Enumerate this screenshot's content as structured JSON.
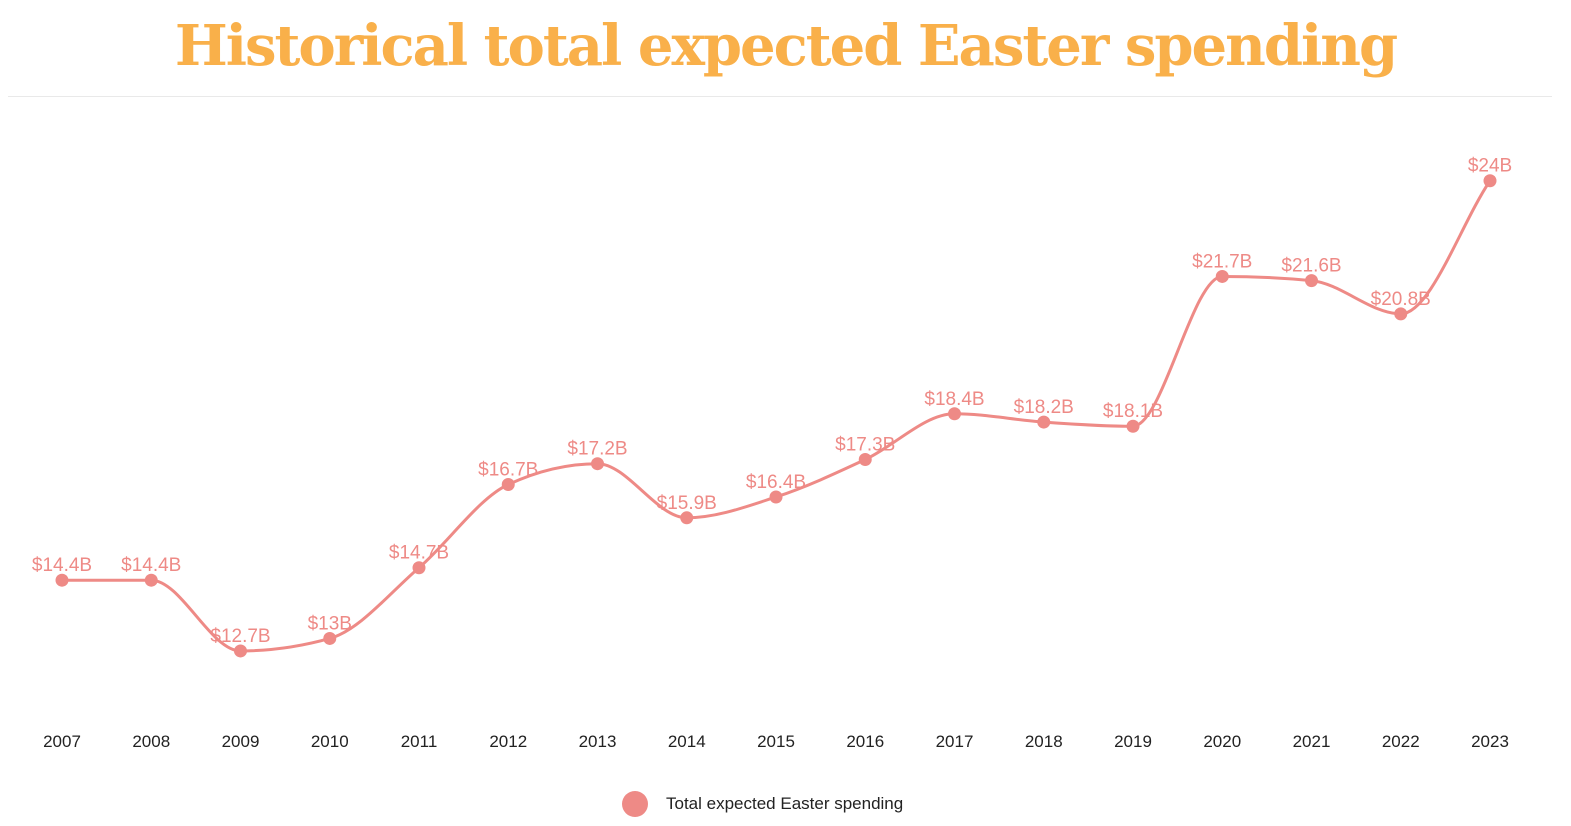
{
  "title": "Historical total expected Easter spending",
  "colors": {
    "title": "#f9b04a",
    "series": "#ee8a86",
    "value_label": "#ee8a86",
    "axis_text": "#222222"
  },
  "legend": {
    "label": "Total expected Easter spending"
  },
  "chart_data": {
    "type": "line",
    "title": "Historical total expected Easter spending",
    "xlabel": "",
    "ylabel": "",
    "grid": false,
    "legend_position": "bottom-center",
    "x": [
      "2007",
      "2008",
      "2009",
      "2010",
      "2011",
      "2012",
      "2013",
      "2014",
      "2015",
      "2016",
      "2017",
      "2018",
      "2019",
      "2020",
      "2021",
      "2022",
      "2023"
    ],
    "series": [
      {
        "name": "Total expected Easter spending",
        "values": [
          14.4,
          14.4,
          12.7,
          13,
          14.7,
          16.7,
          17.2,
          15.9,
          16.4,
          17.3,
          18.4,
          18.2,
          18.1,
          21.7,
          21.6,
          20.8,
          24
        ],
        "labels": [
          "$14.4B",
          "$14.4B",
          "$12.7B",
          "$13B",
          "$14.7B",
          "$16.7B",
          "$17.2B",
          "$15.9B",
          "$16.4B",
          "$17.3B",
          "$18.4B",
          "$18.2B",
          "$18.1B",
          "$21.7B",
          "$21.6B",
          "$20.8B",
          "$24B"
        ]
      }
    ],
    "ylim": [
      10.8,
      25.7
    ]
  }
}
